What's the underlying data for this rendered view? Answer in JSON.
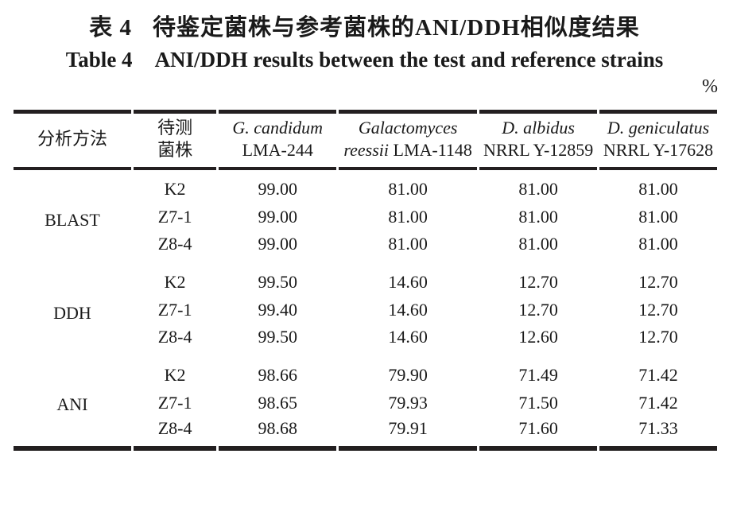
{
  "title": {
    "zh_label": "表 4",
    "zh_text": "待鉴定菌株与参考菌株的ANI/DDH相似度结果",
    "en_label": "Table 4",
    "en_text": "ANI/DDH results between the test and reference strains"
  },
  "unit": "%",
  "table": {
    "headers": {
      "method": "分析方法",
      "strain_line1": "待测",
      "strain_line2": "菌株",
      "ref_cols": [
        {
          "line1_italic": "G. candidum",
          "line2_italic": "",
          "line2_regular": "LMA-244"
        },
        {
          "line1_italic": "Galactomyces",
          "line2_italic": "reessii",
          "line2_regular": "LMA-1148"
        },
        {
          "line1_italic": "D. albidus",
          "line2_italic": "",
          "line2_regular": "NRRL Y-12859"
        },
        {
          "line1_italic": "D. geniculatus",
          "line2_italic": "",
          "line2_regular": "NRRL Y-17628"
        }
      ]
    },
    "groups": [
      {
        "method": "BLAST",
        "rows": [
          {
            "strain": "K2",
            "values": [
              "99.00",
              "81.00",
              "81.00",
              "81.00"
            ]
          },
          {
            "strain": "Z7-1",
            "values": [
              "99.00",
              "81.00",
              "81.00",
              "81.00"
            ]
          },
          {
            "strain": "Z8-4",
            "values": [
              "99.00",
              "81.00",
              "81.00",
              "81.00"
            ]
          }
        ]
      },
      {
        "method": "DDH",
        "rows": [
          {
            "strain": "K2",
            "values": [
              "99.50",
              "14.60",
              "12.70",
              "12.70"
            ]
          },
          {
            "strain": "Z7-1",
            "values": [
              "99.40",
              "14.60",
              "12.70",
              "12.70"
            ]
          },
          {
            "strain": "Z8-4",
            "values": [
              "99.50",
              "14.60",
              "12.60",
              "12.70"
            ]
          }
        ]
      },
      {
        "method": "ANI",
        "rows": [
          {
            "strain": "K2",
            "values": [
              "98.66",
              "79.90",
              "71.49",
              "71.42"
            ]
          },
          {
            "strain": "Z7-1",
            "values": [
              "98.65",
              "79.93",
              "71.50",
              "71.42"
            ]
          },
          {
            "strain": "Z8-4",
            "values": [
              "98.68",
              "79.91",
              "71.60",
              "71.33"
            ]
          }
        ]
      }
    ]
  },
  "colors": {
    "text": "#1a1a1a",
    "rule": "#231f20",
    "background": "#ffffff"
  }
}
